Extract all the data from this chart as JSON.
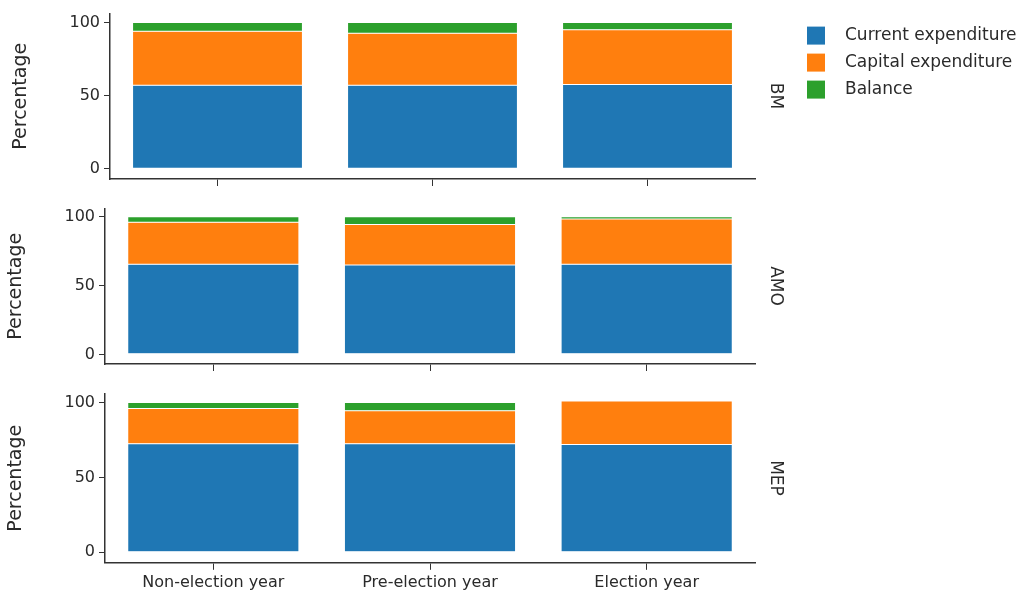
{
  "chart_data": [
    {
      "type": "bar",
      "stacked": true,
      "annotations": [
        "BM"
      ],
      "ylabel": "Percentage",
      "categories": [
        null,
        null,
        null
      ],
      "ylim": [
        -7,
        106
      ],
      "yticks": [
        0,
        50,
        100
      ],
      "tick_labels": "y",
      "legend": "top right",
      "grid": false,
      "series": [
        {
          "name": "Current expenditure",
          "color": "#1f77b4",
          "values": [
            57,
            57,
            57.5
          ]
        },
        {
          "name": "Capital expenditure",
          "color": "#ff7f0e",
          "values": [
            37,
            35.5,
            37.5
          ]
        },
        {
          "name": "Balance",
          "color": "#2ca02c",
          "values": [
            6,
            7.5,
            5
          ]
        }
      ]
    },
    {
      "type": "bar",
      "stacked": true,
      "annotations": [
        "AMO"
      ],
      "ylabel": "Percentage",
      "categories": [
        null,
        null,
        null
      ],
      "ylim": [
        -7,
        106
      ],
      "yticks": [
        0,
        50,
        100
      ],
      "tick_labels": "y",
      "grid": false,
      "series": [
        {
          "color": "#1f77b4",
          "values": [
            65.5,
            65,
            65.5
          ]
        },
        {
          "color": "#ff7f0e",
          "values": [
            30.5,
            29.5,
            33
          ]
        },
        {
          "color": "#2ca02c",
          "values": [
            4,
            5.5,
            1.5
          ]
        }
      ]
    },
    {
      "type": "bar",
      "stacked": true,
      "annotations": [
        "MEP"
      ],
      "ylabel": "Percentage",
      "categories": [
        "Non-election year",
        "Pre-election year",
        "Election year"
      ],
      "ylim": [
        -7,
        106
      ],
      "yticks": [
        0,
        50,
        100
      ],
      "grid": false,
      "series": [
        {
          "color": "#1f77b4",
          "values": [
            72.5,
            72.5,
            72
          ]
        },
        {
          "color": "#ff7f0e",
          "values": [
            23.5,
            22,
            29
          ]
        },
        {
          "color": "#2ca02c",
          "values": [
            4,
            5.5,
            0
          ]
        }
      ]
    }
  ]
}
